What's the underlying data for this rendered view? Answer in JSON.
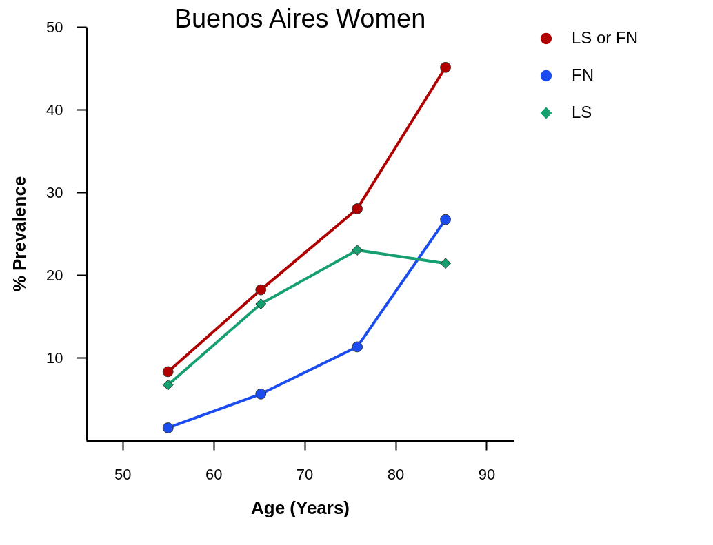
{
  "chart_data": {
    "type": "line",
    "title": "Buenos Aires Women",
    "xlabel": "Age (Years)",
    "ylabel": "% Prevalence",
    "x": [
      55,
      65.2,
      75.8,
      85.5
    ],
    "series": [
      {
        "name": "LS or FN",
        "color": "#b00000",
        "marker": "circle",
        "values": [
          8.3,
          18.2,
          28.0,
          45.1
        ]
      },
      {
        "name": "FN",
        "color": "#1a4cf0",
        "marker": "circle",
        "values": [
          1.5,
          5.6,
          11.3,
          26.7
        ]
      },
      {
        "name": "LS",
        "color": "#16a070",
        "marker": "diamond",
        "values": [
          6.7,
          16.5,
          23.0,
          21.4
        ]
      }
    ],
    "xlim": [
      46,
      93
    ],
    "xticks": [
      50,
      60,
      70,
      80,
      90
    ],
    "ylim": [
      0,
      50
    ],
    "yticks": [
      10,
      20,
      30,
      40,
      50
    ],
    "grid": false,
    "legend": "right",
    "line_style": "solid"
  }
}
